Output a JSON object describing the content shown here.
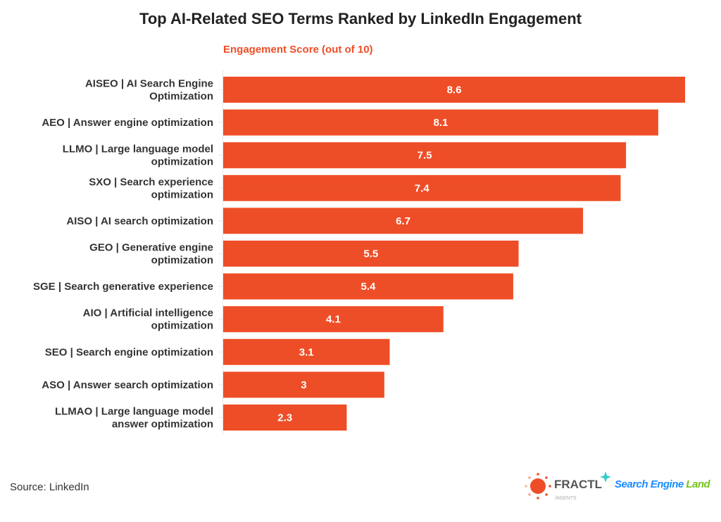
{
  "chart_data": {
    "type": "bar",
    "orientation": "horizontal",
    "title": "Top AI-Related SEO Terms Ranked by LinkedIn Engagement",
    "xlabel": "Engagement Score (out of 10)",
    "categories": [
      [
        "AISEO | AI Search Engine",
        "Optimization"
      ],
      [
        "AEO | Answer engine optimization"
      ],
      [
        "LLMO | Large language model",
        "optimization"
      ],
      [
        "SXO | Search experience",
        "optimization"
      ],
      [
        "AISO | AI search optimization"
      ],
      [
        "GEO | Generative engine",
        "optimization"
      ],
      [
        "SGE | Search generative experience"
      ],
      [
        "AIO | Artificial intelligence",
        "optimization"
      ],
      [
        "SEO | Search engine optimization"
      ],
      [
        "ASO | Answer search optimization"
      ],
      [
        "LLMAO | Large language model",
        "answer optimization"
      ]
    ],
    "values": [
      8.6,
      8.1,
      7.5,
      7.4,
      6.7,
      5.5,
      5.4,
      4.1,
      3.1,
      3,
      2.3
    ],
    "value_labels": [
      "8.6",
      "8.1",
      "7.5",
      "7.4",
      "6.7",
      "5.5",
      "5.4",
      "4.1",
      "3.1",
      "3",
      "2.3"
    ],
    "xlim": [
      0,
      8.6
    ],
    "grid": false,
    "bar_color": "#EE4E27",
    "title_color": "#222222",
    "subtitle_color": "#EE4E27"
  },
  "source": "Source: LinkedIn",
  "logos": {
    "fractl": {
      "name": "FRACTL",
      "sub": "/AGENTS",
      "color": "#EE4E27"
    },
    "sel": {
      "part1": "Search Engine",
      "part2": "Land",
      "color1": "#1a8cff",
      "color2": "#77c11e"
    }
  }
}
